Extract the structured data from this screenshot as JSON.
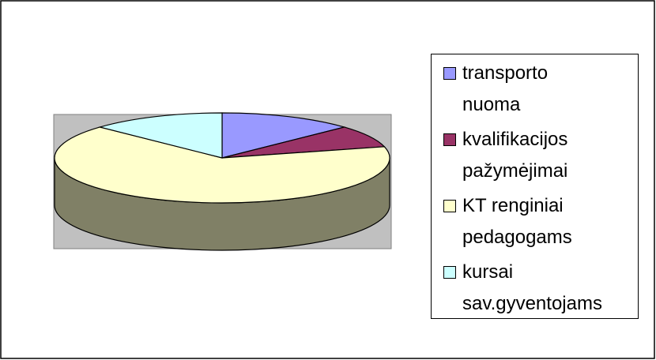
{
  "chart_data": {
    "type": "pie",
    "three_d": true,
    "categories": [
      "transporto\nnuoma",
      "kvalifikacijos\npažymėjimai",
      "KT renginiai\npedagogams",
      "kursai\nsav.gyventojams"
    ],
    "values": [
      13,
      8,
      66,
      13
    ],
    "colors": [
      "#9999ff",
      "#993366",
      "#ffffcc",
      "#ccffff"
    ],
    "legend": "right"
  }
}
